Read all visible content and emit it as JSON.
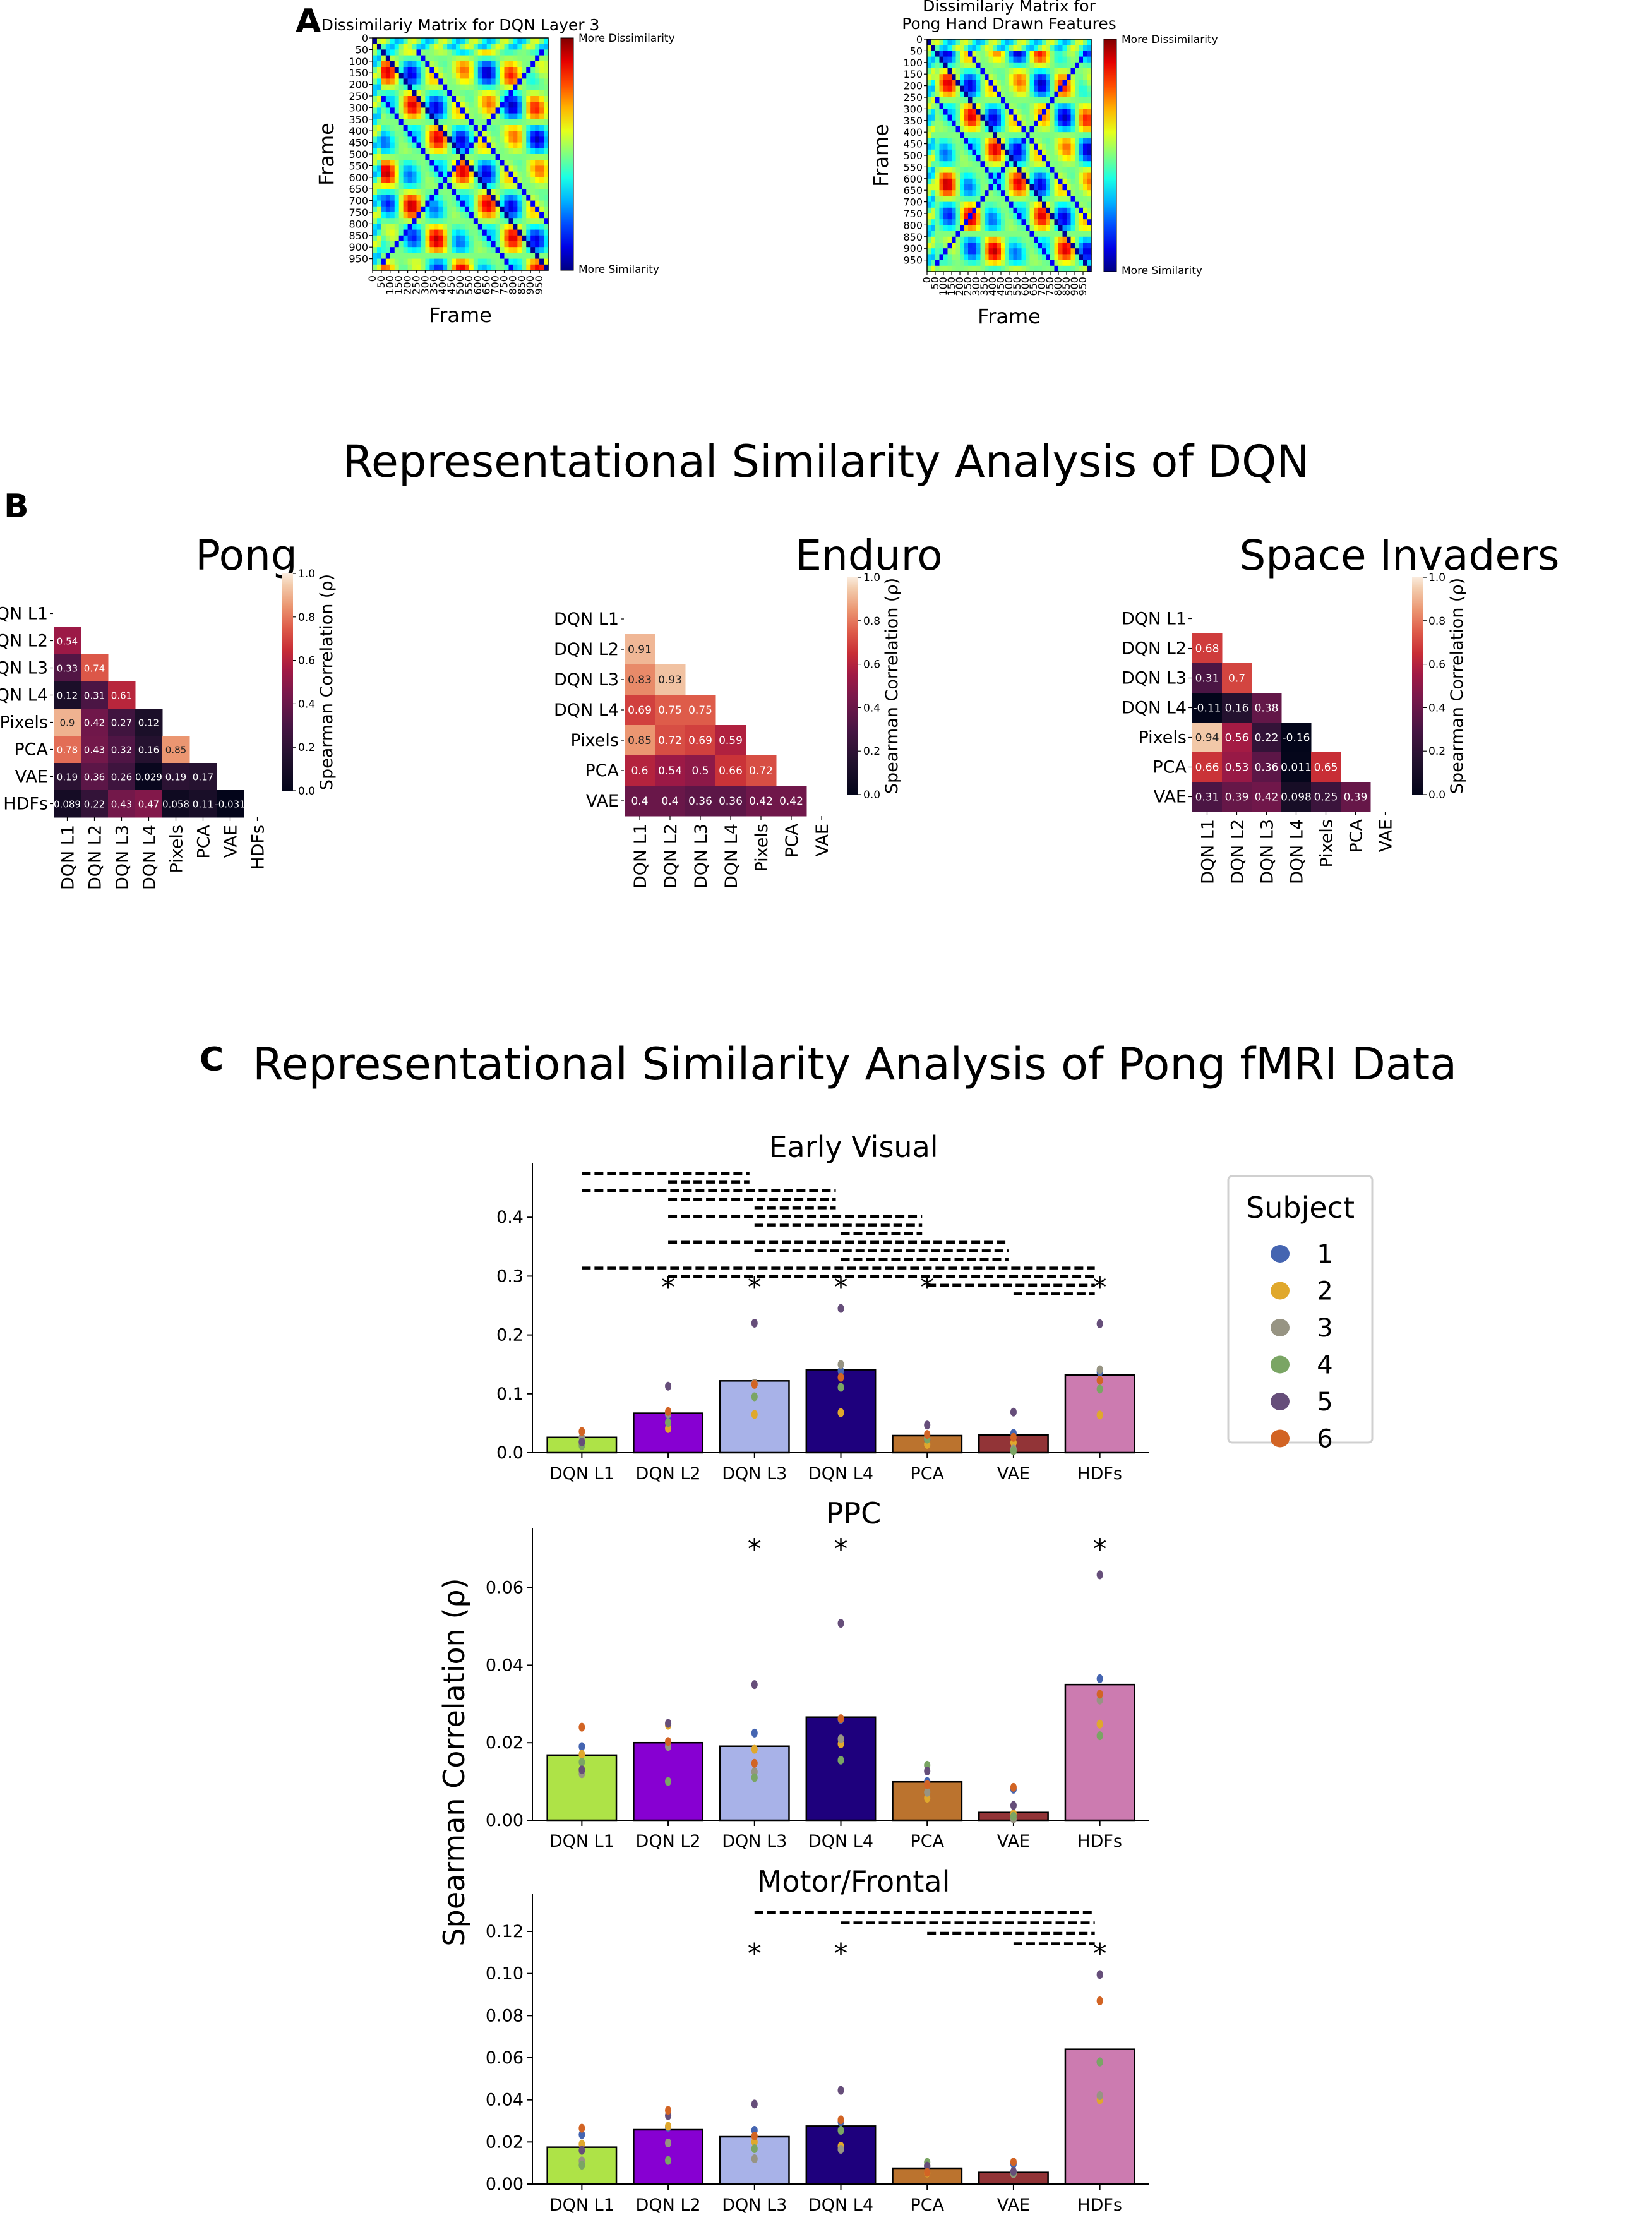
{
  "panels": {
    "a_label": "A",
    "b_label": "B",
    "c_label": "C",
    "b_title": "Representational Similarity Analysis of DQN",
    "c_title": "Representational Similarity Analysis of Pong fMRI Data"
  },
  "chart_data": [
    {
      "id": "dissim-dqn-l3",
      "type": "heatmap",
      "title": "Dissimilariy Matrix for DQN Layer 3",
      "xlabel": "Frame",
      "ylabel": "Frame",
      "ticks": [
        "0",
        "50",
        "100",
        "150",
        "200",
        "250",
        "300",
        "350",
        "400",
        "450",
        "500",
        "550",
        "600",
        "650",
        "700",
        "750",
        "800",
        "850",
        "900",
        "950"
      ],
      "range": [
        0,
        1000
      ],
      "colormap": "jet",
      "colorbar_top": "More Dissimilarity",
      "colorbar_bottom": "More Similarity"
    },
    {
      "id": "dissim-hdf",
      "type": "heatmap",
      "title": "Dissimilariy Matrix for Pong Hand Drawn Features",
      "title_lines": [
        "Dissimilariy Matrix for",
        "Pong Hand Drawn Features"
      ],
      "xlabel": "Frame",
      "ylabel": "Frame",
      "ticks": [
        "0",
        "50",
        "100",
        "150",
        "200",
        "250",
        "300",
        "350",
        "400",
        "450",
        "500",
        "550",
        "600",
        "650",
        "700",
        "750",
        "800",
        "850",
        "900",
        "950"
      ],
      "range": [
        0,
        1000
      ],
      "colormap": "jet",
      "colorbar_top": "More Dissimilarity",
      "colorbar_bottom": "More Similarity"
    },
    {
      "id": "rsa-pong",
      "type": "heatmap",
      "title": "Pong",
      "labels": [
        "DQN L1",
        "DQN L2",
        "DQN L3",
        "DQN L4",
        "Pixels",
        "PCA",
        "VAE",
        "HDFs"
      ],
      "lower_triangle": [
        [],
        [
          0.54
        ],
        [
          0.33,
          0.74
        ],
        [
          0.12,
          0.31,
          0.61
        ],
        [
          0.9,
          0.42,
          0.27,
          0.12
        ],
        [
          0.78,
          0.43,
          0.32,
          0.16,
          0.85
        ],
        [
          0.19,
          0.36,
          0.26,
          0.029,
          0.19,
          0.17
        ],
        [
          0.089,
          0.22,
          0.43,
          0.47,
          0.058,
          0.11,
          -0.031
        ]
      ],
      "colorbar_label": "Spearman Correlation (ρ)",
      "colorbar_ticks": [
        "0.0",
        "0.2",
        "0.4",
        "0.6",
        "0.8",
        "1.0"
      ],
      "vmin": 0,
      "vmax": 1
    },
    {
      "id": "rsa-enduro",
      "type": "heatmap",
      "title": "Enduro",
      "labels": [
        "DQN L1",
        "DQN L2",
        "DQN L3",
        "DQN L4",
        "Pixels",
        "PCA",
        "VAE"
      ],
      "lower_triangle": [
        [],
        [
          0.91
        ],
        [
          0.83,
          0.93
        ],
        [
          0.69,
          0.75,
          0.75
        ],
        [
          0.85,
          0.72,
          0.69,
          0.59
        ],
        [
          0.6,
          0.54,
          0.5,
          0.66,
          0.72
        ],
        [
          0.4,
          0.4,
          0.36,
          0.36,
          0.42,
          0.42
        ]
      ],
      "colorbar_label": "Spearman Correlation (ρ)",
      "colorbar_ticks": [
        "0.0",
        "0.2",
        "0.4",
        "0.6",
        "0.8",
        "1.0"
      ],
      "vmin": 0,
      "vmax": 1
    },
    {
      "id": "rsa-space-invaders",
      "type": "heatmap",
      "title": "Space Invaders",
      "labels": [
        "DQN L1",
        "DQN L2",
        "DQN L3",
        "DQN L4",
        "Pixels",
        "PCA",
        "VAE"
      ],
      "lower_triangle": [
        [],
        [
          0.68
        ],
        [
          0.31,
          0.7
        ],
        [
          -0.11,
          0.16,
          0.38
        ],
        [
          0.94,
          0.56,
          0.22,
          -0.16
        ],
        [
          0.66,
          0.53,
          0.36,
          0.011,
          0.65
        ],
        [
          0.31,
          0.39,
          0.42,
          0.098,
          0.25,
          0.39
        ]
      ],
      "colorbar_label": "Spearman Correlation (ρ)",
      "colorbar_ticks": [
        "0.0",
        "0.2",
        "0.4",
        "0.6",
        "0.8",
        "1.0"
      ],
      "vmin": 0,
      "vmax": 1
    },
    {
      "id": "fmri-early-visual",
      "type": "bar",
      "title": "Early Visual",
      "categories": [
        "DQN L1",
        "DQN L2",
        "DQN L3",
        "DQN L4",
        "PCA",
        "VAE",
        "HDFs"
      ],
      "values": [
        0.026,
        0.067,
        0.122,
        0.141,
        0.029,
        0.03,
        0.132
      ],
      "subject_points": [
        [
          0.018,
          0.014,
          0.026,
          0.012,
          0.018,
          0.036
        ],
        [
          0.064,
          0.041,
          0.066,
          0.051,
          0.113,
          0.07
        ],
        [
          0.118,
          0.065,
          0.118,
          0.095,
          0.22,
          0.116
        ],
        [
          0.139,
          0.068,
          0.15,
          0.111,
          0.245,
          0.128
        ],
        [
          0.022,
          0.014,
          0.025,
          0.023,
          0.047,
          0.031
        ],
        [
          0.033,
          0.017,
          0.006,
          0.003,
          0.069,
          0.026
        ],
        [
          0.137,
          0.064,
          0.141,
          0.108,
          0.219,
          0.123
        ]
      ],
      "significant": [
        false,
        true,
        true,
        true,
        true,
        false,
        true
      ],
      "comparison_brackets": [
        [
          0,
          2
        ],
        [
          1,
          2
        ],
        [
          0,
          3
        ],
        [
          1,
          3
        ],
        [
          2,
          3
        ],
        [
          1,
          4
        ],
        [
          2,
          4
        ],
        [
          3,
          4
        ],
        [
          1,
          5
        ],
        [
          2,
          5
        ],
        [
          3,
          5
        ],
        [
          0,
          6
        ],
        [
          1,
          6
        ],
        [
          4,
          6
        ],
        [
          5,
          6
        ]
      ],
      "yticks": [
        "0.0",
        "0.1",
        "0.2",
        "0.3",
        "0.4"
      ],
      "ylim": [
        0,
        0.47
      ]
    },
    {
      "id": "fmri-ppc",
      "type": "bar",
      "title": "PPC",
      "categories": [
        "DQN L1",
        "DQN L2",
        "DQN L3",
        "DQN L4",
        "PCA",
        "VAE",
        "HDFs"
      ],
      "values": [
        0.0168,
        0.02,
        0.0191,
        0.0266,
        0.0099,
        0.002,
        0.035
      ],
      "subject_points": [
        [
          0.019,
          0.017,
          0.012,
          0.015,
          0.013,
          0.024
        ],
        [
          0.0195,
          0.0245,
          0.019,
          0.01,
          0.025,
          0.0203
        ],
        [
          0.0225,
          0.0183,
          0.0125,
          0.011,
          0.035,
          0.0147
        ],
        [
          0.026,
          0.0197,
          0.021,
          0.0155,
          0.0508,
          0.0262
        ],
        [
          0.01,
          0.0057,
          0.0072,
          0.0142,
          0.0127,
          0.0092
        ],
        [
          0.008,
          0.0017,
          0.0003,
          0.001,
          0.0038,
          0.0085
        ],
        [
          0.0365,
          0.0248,
          0.031,
          0.0218,
          0.0633,
          0.0325
        ]
      ],
      "significant": [
        false,
        false,
        true,
        true,
        false,
        false,
        true
      ],
      "comparison_brackets": [],
      "yticks": [
        "0.00",
        "0.02",
        "0.04",
        "0.06"
      ],
      "ylim": [
        0,
        0.072
      ]
    },
    {
      "id": "fmri-motor-frontal",
      "type": "bar",
      "title": "Motor/Frontal",
      "categories": [
        "DQN L1",
        "DQN L2",
        "DQN L3",
        "DQN L4",
        "PCA",
        "VAE",
        "HDFs"
      ],
      "values": [
        0.0175,
        0.0258,
        0.0225,
        0.0275,
        0.0075,
        0.0055,
        0.064
      ],
      "subject_points": [
        [
          0.0235,
          0.019,
          0.011,
          0.009,
          0.016,
          0.0265
        ],
        [
          0.027,
          0.0275,
          0.0195,
          0.0112,
          0.0325,
          0.035
        ],
        [
          0.0255,
          0.02,
          0.012,
          0.0168,
          0.038,
          0.0228
        ],
        [
          0.0295,
          0.018,
          0.0165,
          0.0255,
          0.0445,
          0.0305
        ],
        [
          0.0085,
          0.0052,
          0.009,
          0.0103,
          0.0085,
          0.0055
        ],
        [
          0.0095,
          0.005,
          0.0048,
          0.0055,
          0.006,
          0.0105
        ],
        [
          0.058,
          0.04,
          0.042,
          0.058,
          0.0995,
          0.087
        ]
      ],
      "significant": [
        false,
        false,
        true,
        true,
        false,
        false,
        true
      ],
      "comparison_brackets": [
        [
          2,
          6
        ],
        [
          3,
          6
        ],
        [
          4,
          6
        ],
        [
          5,
          6
        ]
      ],
      "yticks": [
        "0.00",
        "0.02",
        "0.04",
        "0.06",
        "0.08",
        "0.10",
        "0.12"
      ],
      "ylim": [
        0,
        0.132
      ]
    }
  ],
  "bar_chart_common": {
    "ylabel": "Spearman Correlation (ρ)",
    "bar_colors": [
      "#aee347",
      "#8700d2",
      "#a8b2e8",
      "#1e007d",
      "#bb732e",
      "#923437",
      "#cc7bb0"
    ],
    "significance_marker": "*"
  },
  "legend": {
    "title": "Subject",
    "items": [
      {
        "label": "1",
        "color": "#4565b1"
      },
      {
        "label": "2",
        "color": "#e0a82c"
      },
      {
        "label": "3",
        "color": "#979483"
      },
      {
        "label": "4",
        "color": "#7aa564"
      },
      {
        "label": "5",
        "color": "#664e7a"
      },
      {
        "label": "6",
        "color": "#d26424"
      }
    ]
  }
}
